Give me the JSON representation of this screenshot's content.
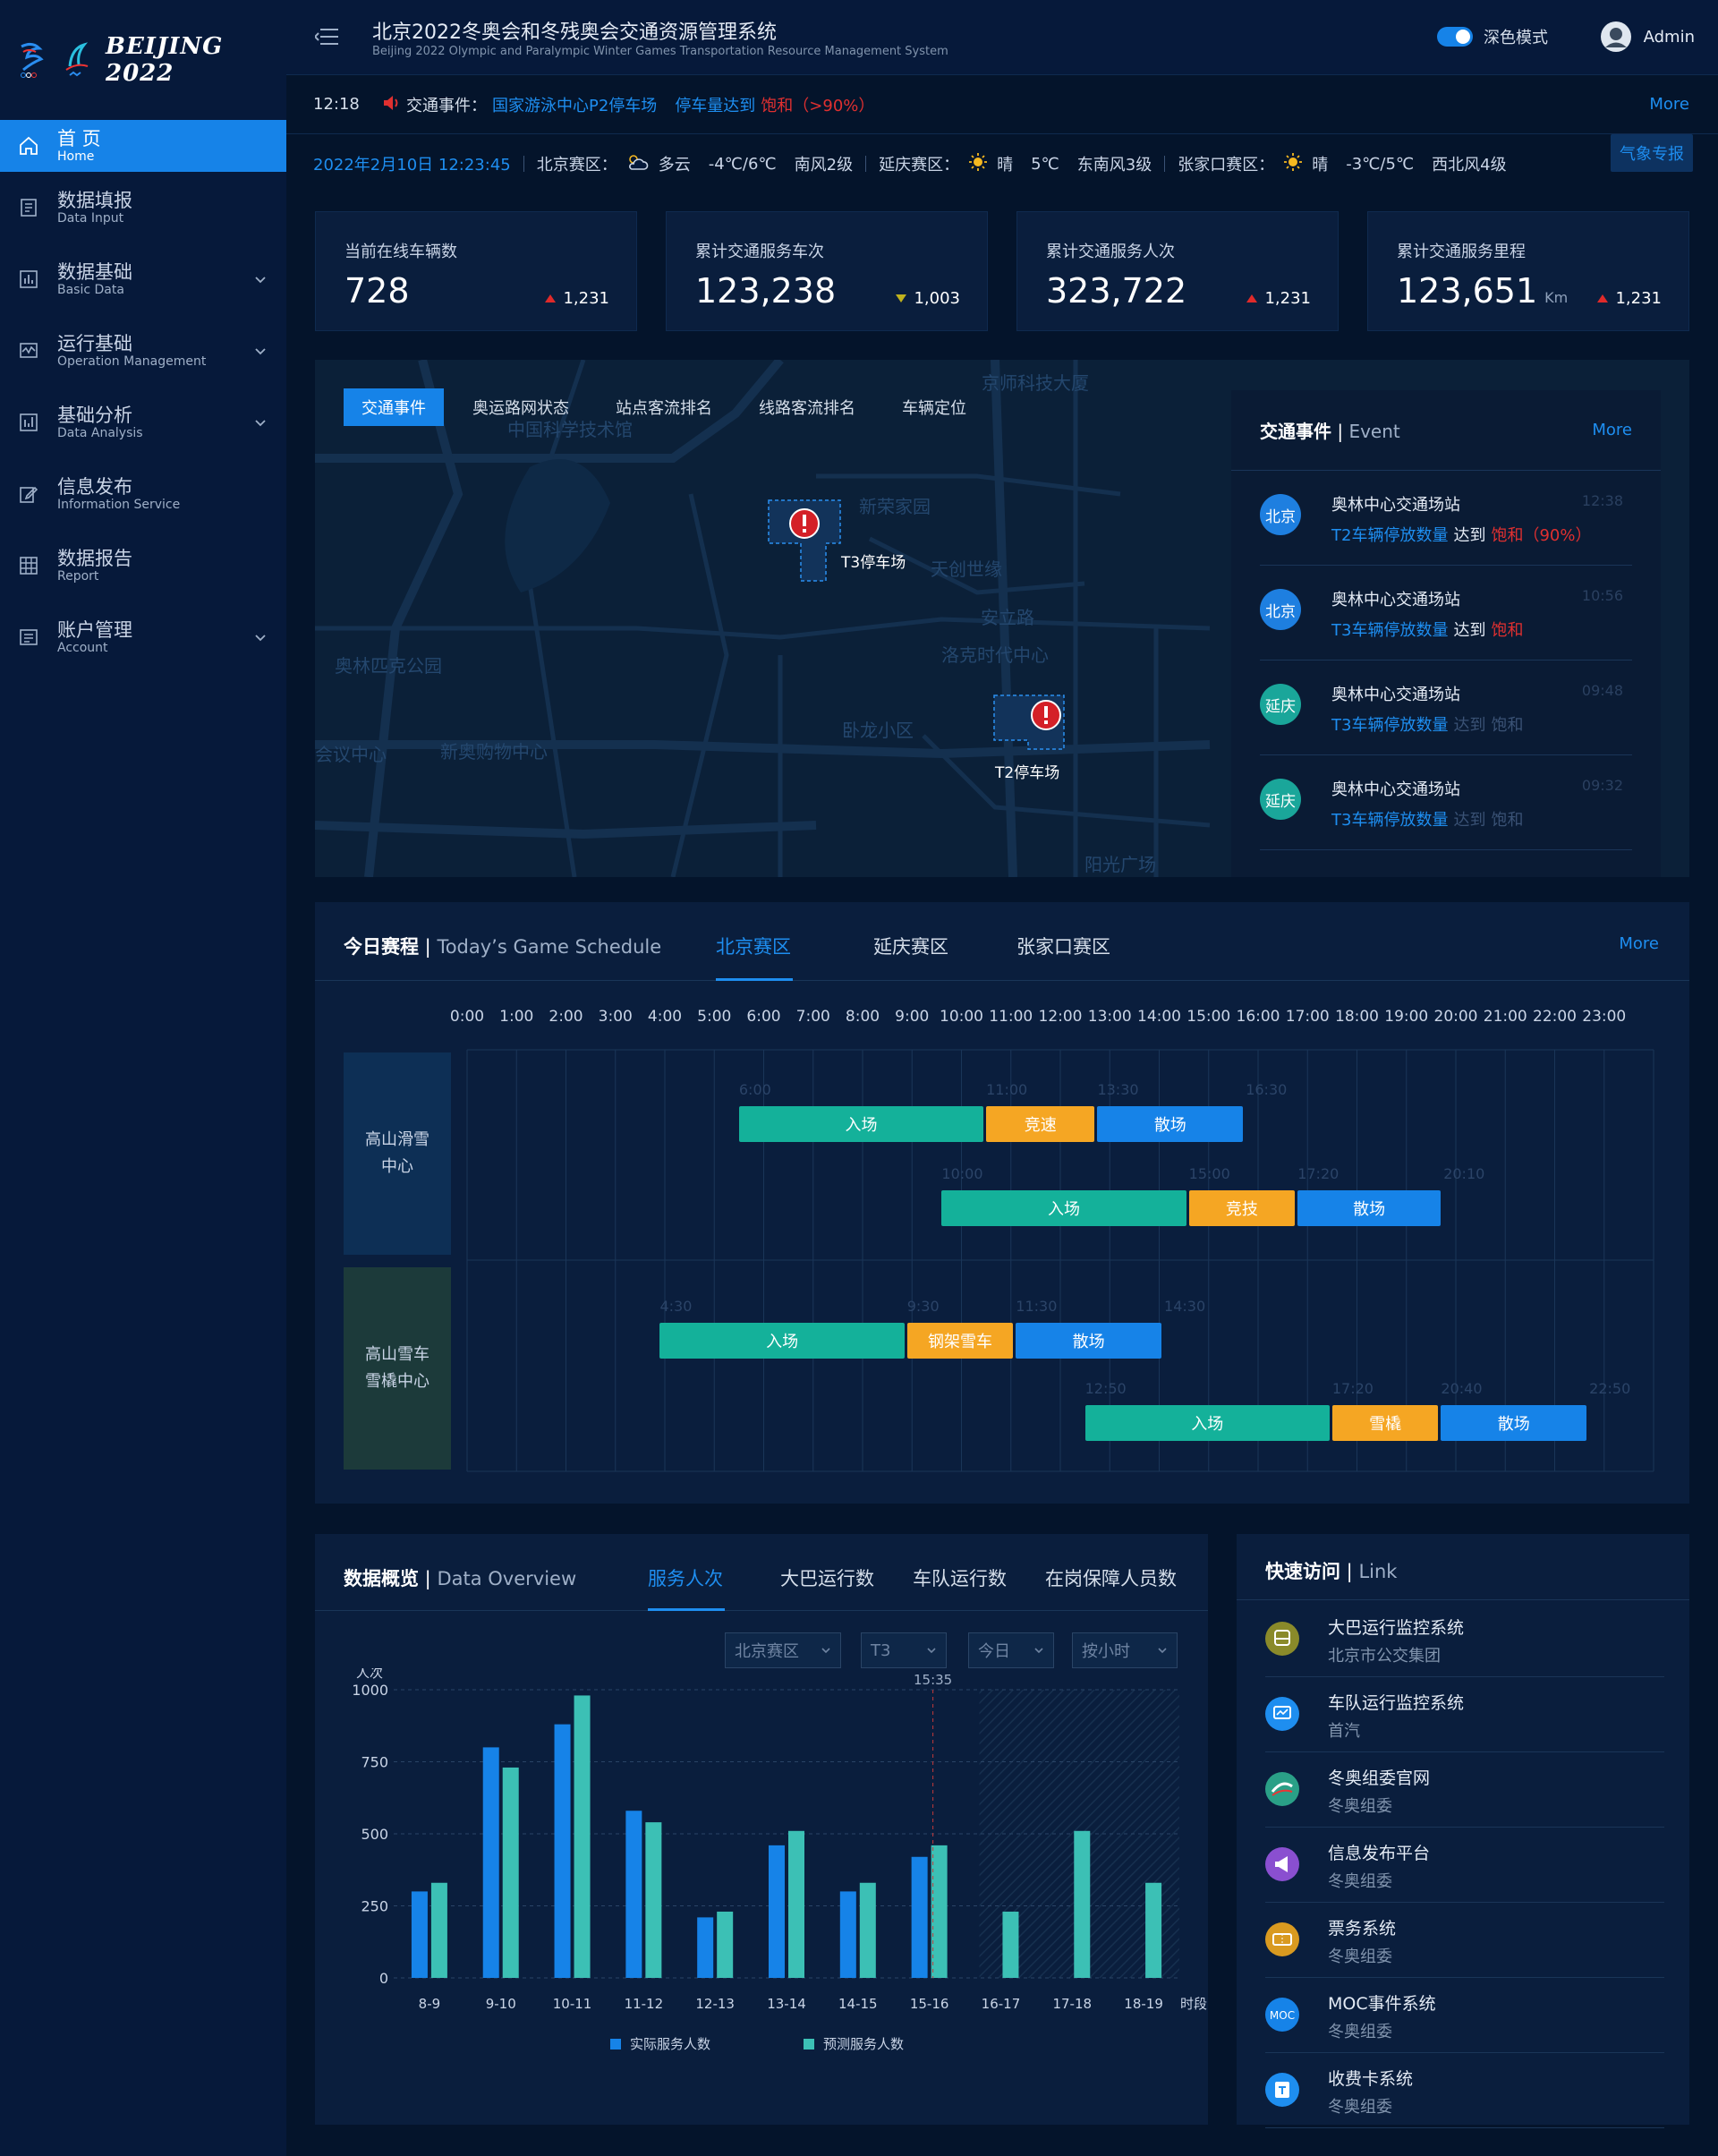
{
  "brand": {
    "logo_text": "BEIJING 2022"
  },
  "nav": [
    {
      "title": "首 页",
      "sub": "Home",
      "icon": "home-icon"
    },
    {
      "title": "数据填报",
      "sub": "Data Input",
      "icon": "form-icon"
    },
    {
      "title": "数据基础",
      "sub": "Basic Data",
      "icon": "bar-chart-icon"
    },
    {
      "title": "运行基础",
      "sub": "Operation Management",
      "icon": "monitor-icon"
    },
    {
      "title": "基础分析",
      "sub": "Data Analysis",
      "icon": "analysis-icon"
    },
    {
      "title": "信息发布",
      "sub": "Information Service",
      "icon": "edit-icon"
    },
    {
      "title": "数据报告",
      "sub": "Report",
      "icon": "table-icon"
    },
    {
      "title": "账户管理",
      "sub": "Account",
      "icon": "account-icon"
    }
  ],
  "header": {
    "title": "北京2022冬奥会和冬残奥会交通资源管理系统",
    "subtitle": "Beijing 2022 Olympic and Paralympic Winter Games Transportation Resource Management System",
    "dark_mode": "深色模式",
    "user": "Admin"
  },
  "ticker": {
    "time": "12:18",
    "label": "交通事件：",
    "place": "国家游泳中心P2停车场",
    "metric": "停车量达到",
    "status": "饱和（>90%）",
    "more": "More"
  },
  "weather": {
    "date": "2022年2月10日 12:23:45",
    "zones": [
      {
        "name": "北京赛区：",
        "cond": "多云",
        "temp": "-4℃/6℃",
        "wind": "南风2级"
      },
      {
        "name": "延庆赛区：",
        "cond": "晴",
        "temp": "5℃",
        "wind": "东南风3级"
      },
      {
        "name": "张家口赛区：",
        "cond": "晴",
        "temp": "-3℃/5℃",
        "wind": "西北风4级"
      }
    ],
    "button": "气象专报"
  },
  "stats": [
    {
      "label": "当前在线车辆数",
      "value": "728",
      "unit": "",
      "delta": "1,231",
      "dir": "up"
    },
    {
      "label": "累计交通服务车次",
      "value": "123,238",
      "unit": "",
      "delta": "1,003",
      "dir": "down"
    },
    {
      "label": "累计交通服务人次",
      "value": "323,722",
      "unit": "",
      "delta": "1,231",
      "dir": "up"
    },
    {
      "label": "累计交通服务里程",
      "value": "123,651",
      "unit": "Km",
      "delta": "1,231",
      "dir": "up"
    }
  ],
  "map": {
    "tabs": [
      "交通事件",
      "奥运路网状态",
      "站点客流排名",
      "线路客流排名",
      "车辆定位"
    ],
    "parkings": [
      "T3停车场",
      "T2停车场"
    ],
    "labels": [
      "新荣家园",
      "天创世缘",
      "安立路",
      "洛克时代中心",
      "卧龙小区",
      "奥林匹克公园",
      "新奥购物中心",
      "会议中心",
      "阳光广场",
      "京师科技大厦",
      "中国科学技术馆"
    ]
  },
  "events": {
    "title": "交通事件",
    "title_en": "Event",
    "more": "More",
    "items": [
      {
        "region": "北京",
        "name": "奥林中心交通场站",
        "metric": "T2车辆停放数量",
        "verb": "达到",
        "status": "饱和（90%）",
        "time": "12:38",
        "color": "#1e7fe0"
      },
      {
        "region": "北京",
        "name": "奥林中心交通场站",
        "metric": "T3车辆停放数量",
        "verb": "达到",
        "status": "饱和",
        "time": "10:56",
        "color": "#1e7fe0"
      },
      {
        "region": "延庆",
        "name": "奥林中心交通场站",
        "metric": "T3车辆停放数量",
        "verb": "达到",
        "status": "饱和",
        "time": "09:48",
        "color": "#1aa69a"
      },
      {
        "region": "延庆",
        "name": "奥林中心交通场站",
        "metric": "T3车辆停放数量",
        "verb": "达到",
        "status": "饱和",
        "time": "09:32",
        "color": "#1aa69a"
      }
    ]
  },
  "schedule": {
    "title": "今日赛程",
    "title_en": "Today’s Game Schedule",
    "tabs": [
      "北京赛区",
      "延庆赛区",
      "张家口赛区"
    ],
    "more": "More",
    "hours": [
      "0:00",
      "1:00",
      "2:00",
      "3:00",
      "4:00",
      "5:00",
      "6:00",
      "7:00",
      "8:00",
      "9:00",
      "10:00",
      "11:00",
      "12:00",
      "13:00",
      "14:00",
      "15:00",
      "16:00",
      "17:00",
      "18:00",
      "19:00",
      "20:00",
      "21:00",
      "22:00",
      "23:00"
    ],
    "venues": [
      "高山滑雪中心",
      "高山雪车雪橇中心"
    ],
    "rows": [
      {
        "phases": [
          {
            "label": "入场",
            "start": 5.5,
            "end": 10.5,
            "color": "#14b19a"
          },
          {
            "label": "竞速",
            "start": 10.5,
            "end": 12.75,
            "color": "#f5a623"
          },
          {
            "label": "散场",
            "start": 12.75,
            "end": 15.75,
            "color": "#1683e8"
          }
        ],
        "times": [
          "6:00",
          "11:00",
          "13:30",
          "16:30"
        ]
      },
      {
        "phases": [
          {
            "label": "入场",
            "start": 9.6,
            "end": 14.6,
            "color": "#14b19a"
          },
          {
            "label": "竞技",
            "start": 14.6,
            "end": 16.8,
            "color": "#f5a623"
          },
          {
            "label": "散场",
            "start": 16.8,
            "end": 19.75,
            "color": "#1683e8"
          }
        ],
        "times": [
          "10:00",
          "15:00",
          "17:20",
          "20:10"
        ]
      },
      {
        "phases": [
          {
            "label": "入场",
            "start": 3.9,
            "end": 8.9,
            "color": "#14b19a"
          },
          {
            "label": "钢架雪车",
            "start": 8.9,
            "end": 11.1,
            "color": "#f5a623"
          },
          {
            "label": "散场",
            "start": 11.1,
            "end": 14.1,
            "color": "#1683e8"
          }
        ],
        "times": [
          "4:30",
          "9:30",
          "11:30",
          "14:30"
        ]
      },
      {
        "phases": [
          {
            "label": "入场",
            "start": 12.5,
            "end": 17.5,
            "color": "#14b19a"
          },
          {
            "label": "雪橇",
            "start": 17.5,
            "end": 19.7,
            "color": "#f5a623"
          },
          {
            "label": "散场",
            "start": 19.7,
            "end": 22.7,
            "color": "#1683e8"
          }
        ],
        "times": [
          "12:50",
          "17:20",
          "20:40",
          "22:50"
        ]
      }
    ]
  },
  "overview": {
    "title": "数据概览",
    "title_en": "Data Overview",
    "tabs": [
      "服务人次",
      "大巴运行数",
      "车队运行数",
      "在岗保障人员数"
    ],
    "filters": [
      "北京赛区",
      "T3",
      "今日",
      "按小时"
    ]
  },
  "chart_data": {
    "type": "bar",
    "title": "服务人次",
    "ylabel": "人次",
    "xlabel": "时段",
    "ylim": [
      0,
      1000
    ],
    "yticks": [
      0,
      250,
      500,
      750,
      1000
    ],
    "categories": [
      "8-9",
      "9-10",
      "10-11",
      "11-12",
      "12-13",
      "13-14",
      "14-15",
      "15-16",
      "16-17",
      "17-18",
      "18-19"
    ],
    "series": [
      {
        "name": "实际服务人数",
        "color": "#1683e8",
        "values": [
          300,
          800,
          880,
          580,
          210,
          460,
          300,
          420,
          null,
          null,
          null
        ]
      },
      {
        "name": "预测服务人数",
        "color": "#3cc0b5",
        "values": [
          330,
          730,
          980,
          540,
          230,
          510,
          330,
          460,
          230,
          510,
          330
        ]
      }
    ],
    "marker": "15:35"
  },
  "links": {
    "title": "快速访问",
    "title_en": "Link",
    "items": [
      {
        "name": "大巴运行监控系统",
        "org": "北京市公交集团",
        "icon": "bus-icon",
        "color": "#8a8a2a"
      },
      {
        "name": "车队运行监控系统",
        "org": "首汽",
        "icon": "fleet-monitor-icon",
        "color": "#1e8ef0"
      },
      {
        "name": "冬奥组委官网",
        "org": "冬奥组委",
        "icon": "olympic-site-icon",
        "color": "#2aa087"
      },
      {
        "name": "信息发布平台",
        "org": "冬奥组委",
        "icon": "megaphone-icon",
        "color": "#8a4fd0"
      },
      {
        "name": "票务系统",
        "org": "冬奥组委",
        "icon": "ticket-icon",
        "color": "#d99a20"
      },
      {
        "name": "MOC事件系统",
        "org": "冬奥组委",
        "icon": "moc-icon",
        "color": "#1683e8"
      },
      {
        "name": "收费卡系统",
        "org": "冬奥组委",
        "icon": "card-icon",
        "color": "#1e8ef0"
      }
    ]
  }
}
